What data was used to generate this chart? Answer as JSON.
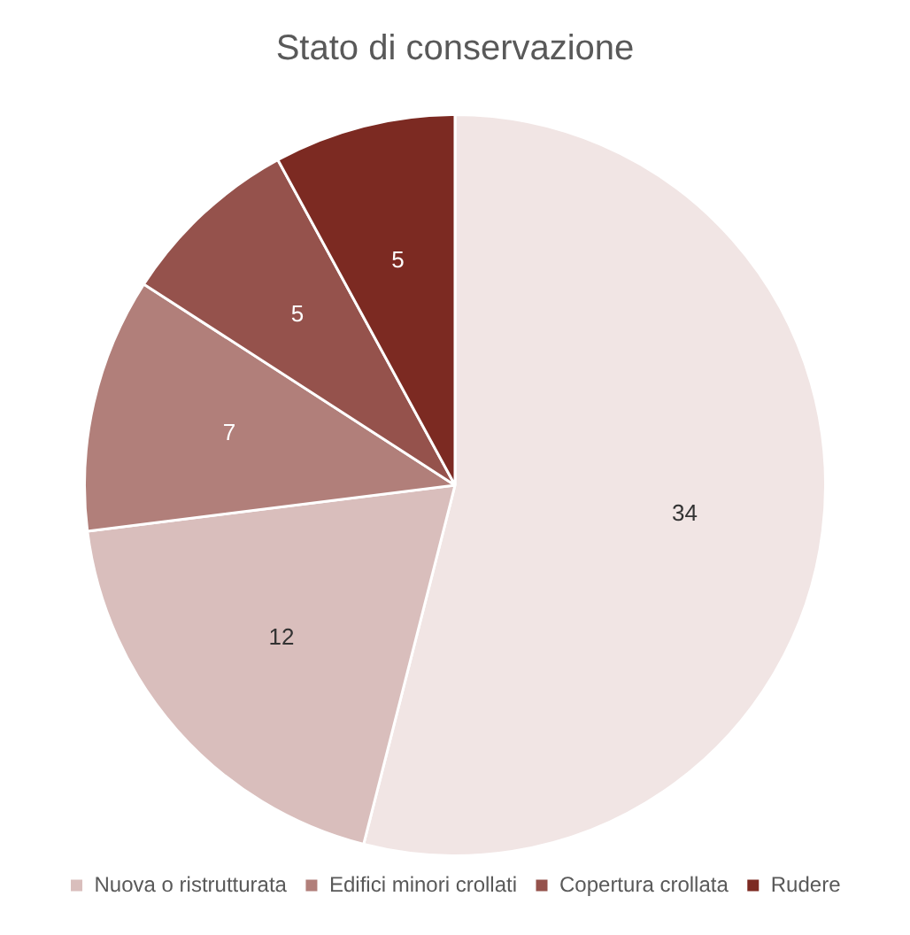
{
  "chart_data": {
    "type": "pie",
    "title": "Stato di conservazione",
    "categories": [
      null,
      "Nuova o ristrutturata",
      "Edifici minori crollati",
      "Copertura crollata",
      "Rudere"
    ],
    "values": [
      34,
      12,
      7,
      5,
      5
    ],
    "colors": [
      "#f1e5e4",
      "#d9bebc",
      "#b17f7a",
      "#95524c",
      "#7c2a22"
    ],
    "data_labels": true,
    "legend": "bottom"
  }
}
